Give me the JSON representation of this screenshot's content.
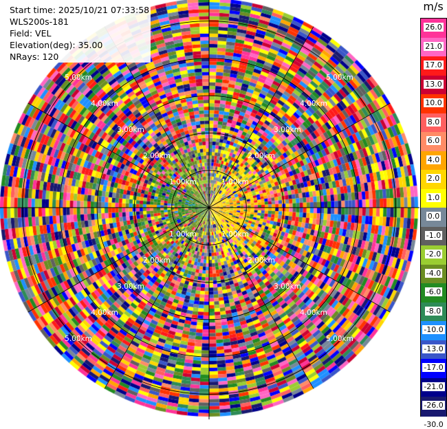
{
  "header": {
    "start_time": "Start time: 2025/10/21 07:33:58",
    "instrument": "WLS200s-181",
    "field": "Field: VEL",
    "elevation": "Elevation(deg): 35.00",
    "nrays": "NRays: 120"
  },
  "chart_data": {
    "type": "heatmap",
    "projection": "polar-ppi",
    "field": "VEL",
    "units": "m/s",
    "nrays": 120,
    "range_rings_km": [
      1.0,
      2.0,
      3.0,
      4.0,
      5.0
    ],
    "range_labels": [
      "1.00km",
      "2.00km",
      "3.00km",
      "4.00km",
      "5.00km"
    ],
    "max_range_km": 5.6,
    "colorbar": {
      "ticks": [
        "26.0",
        "21.0",
        "17.0",
        "13.0",
        "10.0",
        "8.0",
        "6.0",
        "4.0",
        "2.0",
        "1.0",
        "0.0",
        "-1.0",
        "-2.0",
        "-4.0",
        "-6.0",
        "-8.0",
        "-10.0",
        "-13.0",
        "-17.0",
        "-21.0",
        "-26.0",
        "-30.0"
      ],
      "colors": [
        "#ff3399",
        "#ff66c4",
        "#ff1a1a",
        "#cc0033",
        "#ff3300",
        "#ff5f5f",
        "#ff8c66",
        "#ffa500",
        "#ffd700",
        "#ffff00",
        "#778899",
        "#606060",
        "#9acd32",
        "#6b8e23",
        "#228b22",
        "#2e8b57",
        "#1e90ff",
        "#3a56c8",
        "#0000ff",
        "#00008b",
        "#191970"
      ]
    },
    "pattern": "near range: negative velocities (green) on west side, positive (yellow/orange) on east side; far range: noise across full colour scale"
  }
}
